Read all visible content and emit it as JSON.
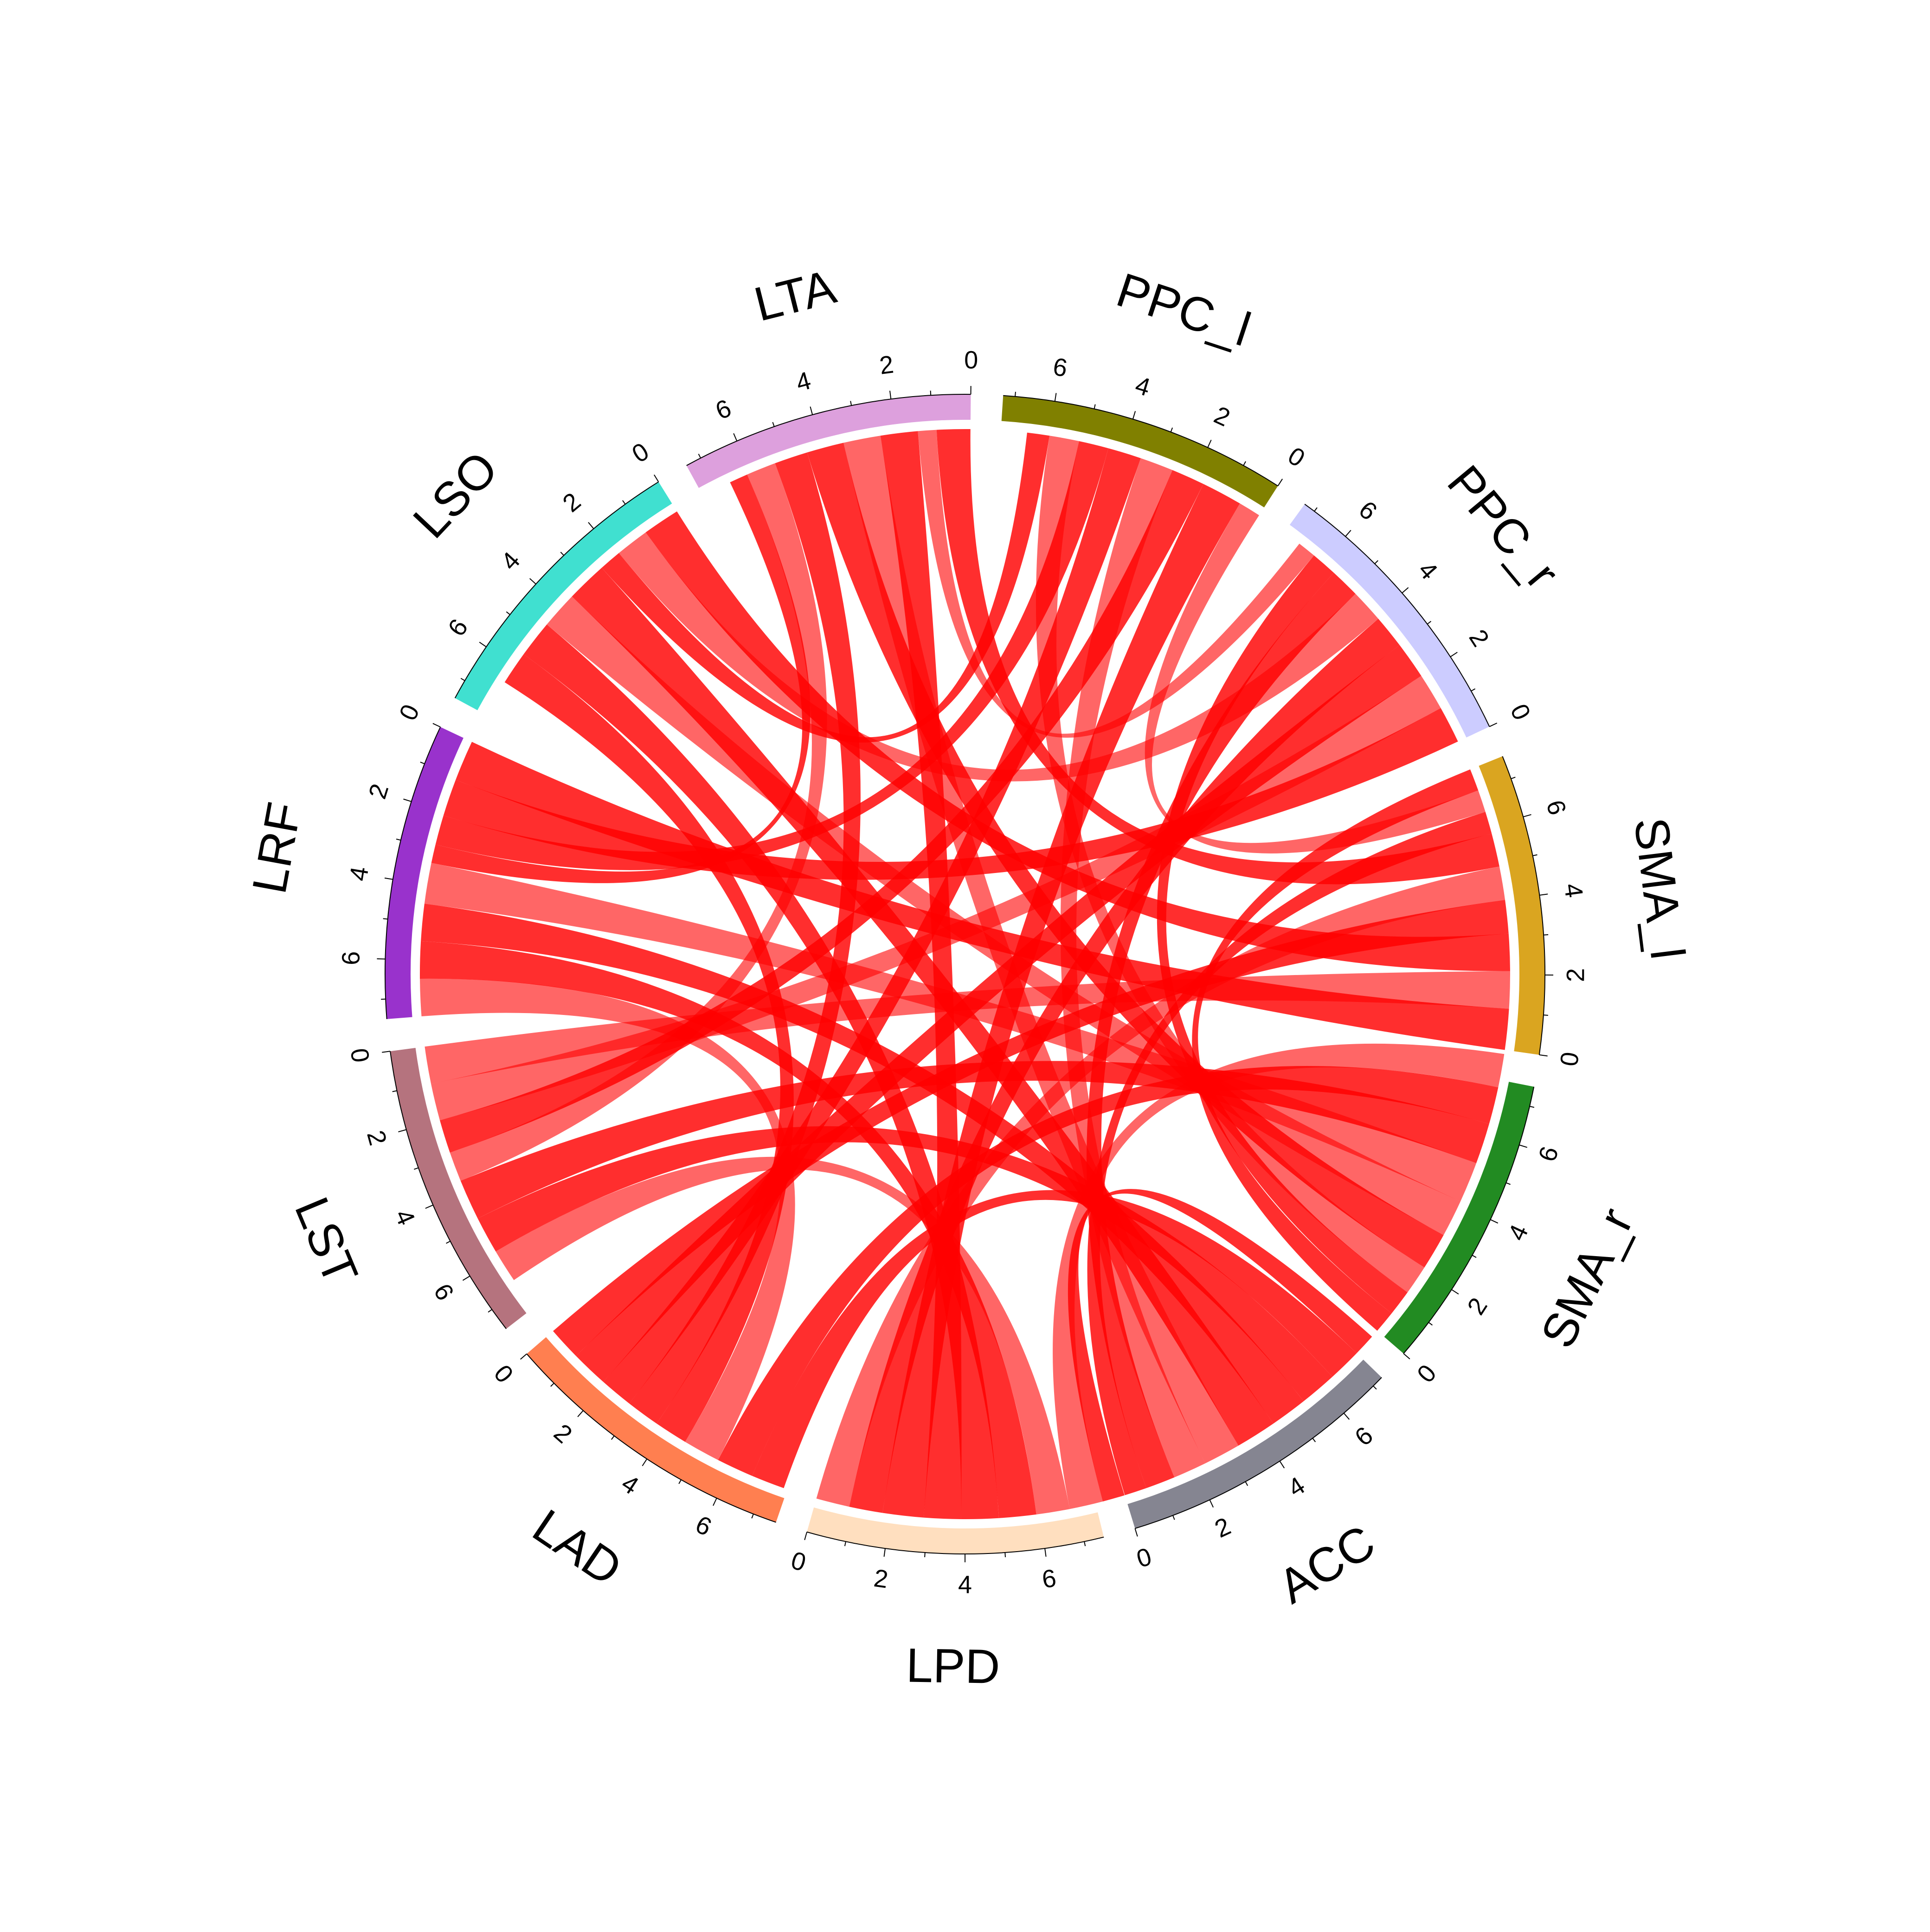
{
  "chart_data": {
    "type": "chord",
    "title": "",
    "ribbon_color": "#ff0000",
    "tick_labels": [
      "0",
      "2",
      "4",
      "6"
    ],
    "sectors": [
      {
        "name": "SMA_l",
        "color": "#daa520"
      },
      {
        "name": "PPC_r",
        "color": "#ccccff"
      },
      {
        "name": "PPC_l",
        "color": "#808000"
      },
      {
        "name": "LTA",
        "color": "#dda0dd"
      },
      {
        "name": "LSO",
        "color": "#40e0d0"
      },
      {
        "name": "LRF",
        "color": "#9932cc"
      },
      {
        "name": "LST",
        "color": "#b5737e"
      },
      {
        "name": "LAD",
        "color": "#ff7f50"
      },
      {
        "name": "LPD",
        "color": "#ffdfbf"
      },
      {
        "name": "ACC",
        "color": "#858591"
      },
      {
        "name": "SMA_r",
        "color": "#228b22"
      }
    ],
    "sector_totals": [
      7.6,
      7.3,
      7.3,
      7.4,
      7.5,
      7.5,
      7.6,
      7.6,
      7.5,
      7.3,
      7.5
    ],
    "links": [
      {
        "from": "SMA_l",
        "to": "LRF",
        "value": 1.1
      },
      {
        "from": "SMA_l",
        "to": "LST",
        "value": 1.0
      },
      {
        "from": "SMA_l",
        "to": "LSO",
        "value": 1.0
      },
      {
        "from": "SMA_l",
        "to": "LAD",
        "value": 0.9
      },
      {
        "from": "SMA_l",
        "to": "LPD",
        "value": 0.9
      },
      {
        "from": "SMA_l",
        "to": "LTA",
        "value": 0.9
      },
      {
        "from": "SMA_l",
        "to": "ACC",
        "value": 0.6
      },
      {
        "from": "SMA_l",
        "to": "PPC_l",
        "value": 0.6
      },
      {
        "from": "SMA_l",
        "to": "SMA_r",
        "value": 0.6
      },
      {
        "from": "PPC_r",
        "to": "LRF",
        "value": 1.0
      },
      {
        "from": "PPC_r",
        "to": "LST",
        "value": 1.0
      },
      {
        "from": "PPC_r",
        "to": "LAD",
        "value": 1.0
      },
      {
        "from": "PPC_r",
        "to": "LPD",
        "value": 0.9
      },
      {
        "from": "PPC_r",
        "to": "LSO",
        "value": 0.9
      },
      {
        "from": "PPC_r",
        "to": "ACC",
        "value": 0.8
      },
      {
        "from": "PPC_r",
        "to": "SMA_r",
        "value": 0.7
      },
      {
        "from": "PPC_r",
        "to": "LTA",
        "value": 0.5
      },
      {
        "from": "PPC_l",
        "to": "LPD",
        "value": 1.1
      },
      {
        "from": "PPC_l",
        "to": "LST",
        "value": 0.9
      },
      {
        "from": "PPC_l",
        "to": "ACC",
        "value": 0.9
      },
      {
        "from": "PPC_l",
        "to": "LAD",
        "value": 0.9
      },
      {
        "from": "PPC_l",
        "to": "LRF",
        "value": 0.8
      },
      {
        "from": "PPC_l",
        "to": "SMA_r",
        "value": 0.8
      },
      {
        "from": "PPC_l",
        "to": "LSO",
        "value": 0.6
      },
      {
        "from": "LTA",
        "to": "LPD",
        "value": 1.0
      },
      {
        "from": "LTA",
        "to": "ACC",
        "value": 1.0
      },
      {
        "from": "LTA",
        "to": "SMA_r",
        "value": 1.0
      },
      {
        "from": "LTA",
        "to": "LAD",
        "value": 0.9
      },
      {
        "from": "LTA",
        "to": "LST",
        "value": 0.8
      },
      {
        "from": "LTA",
        "to": "LRF",
        "value": 0.5
      },
      {
        "from": "LSO",
        "to": "ACC",
        "value": 1.1
      },
      {
        "from": "LSO",
        "to": "SMA_r",
        "value": 1.0
      },
      {
        "from": "LSO",
        "to": "LPD",
        "value": 1.0
      },
      {
        "from": "LSO",
        "to": "LAD",
        "value": 0.9
      },
      {
        "from": "LRF",
        "to": "SMA_r",
        "value": 1.1
      },
      {
        "from": "LRF",
        "to": "ACC",
        "value": 1.0
      },
      {
        "from": "LRF",
        "to": "LPD",
        "value": 1.0
      },
      {
        "from": "LRF",
        "to": "LAD",
        "value": 1.0
      },
      {
        "from": "LST",
        "to": "SMA_r",
        "value": 1.1
      },
      {
        "from": "LST",
        "to": "ACC",
        "value": 1.0
      },
      {
        "from": "LST",
        "to": "LPD",
        "value": 0.9
      },
      {
        "from": "LAD",
        "to": "SMA_r",
        "value": 1.0
      },
      {
        "from": "LAD",
        "to": "ACC",
        "value": 0.9
      },
      {
        "from": "LPD",
        "to": "SMA_r",
        "value": 0.9
      },
      {
        "from": "LPD",
        "to": "ACC",
        "value": 0.6
      }
    ]
  }
}
